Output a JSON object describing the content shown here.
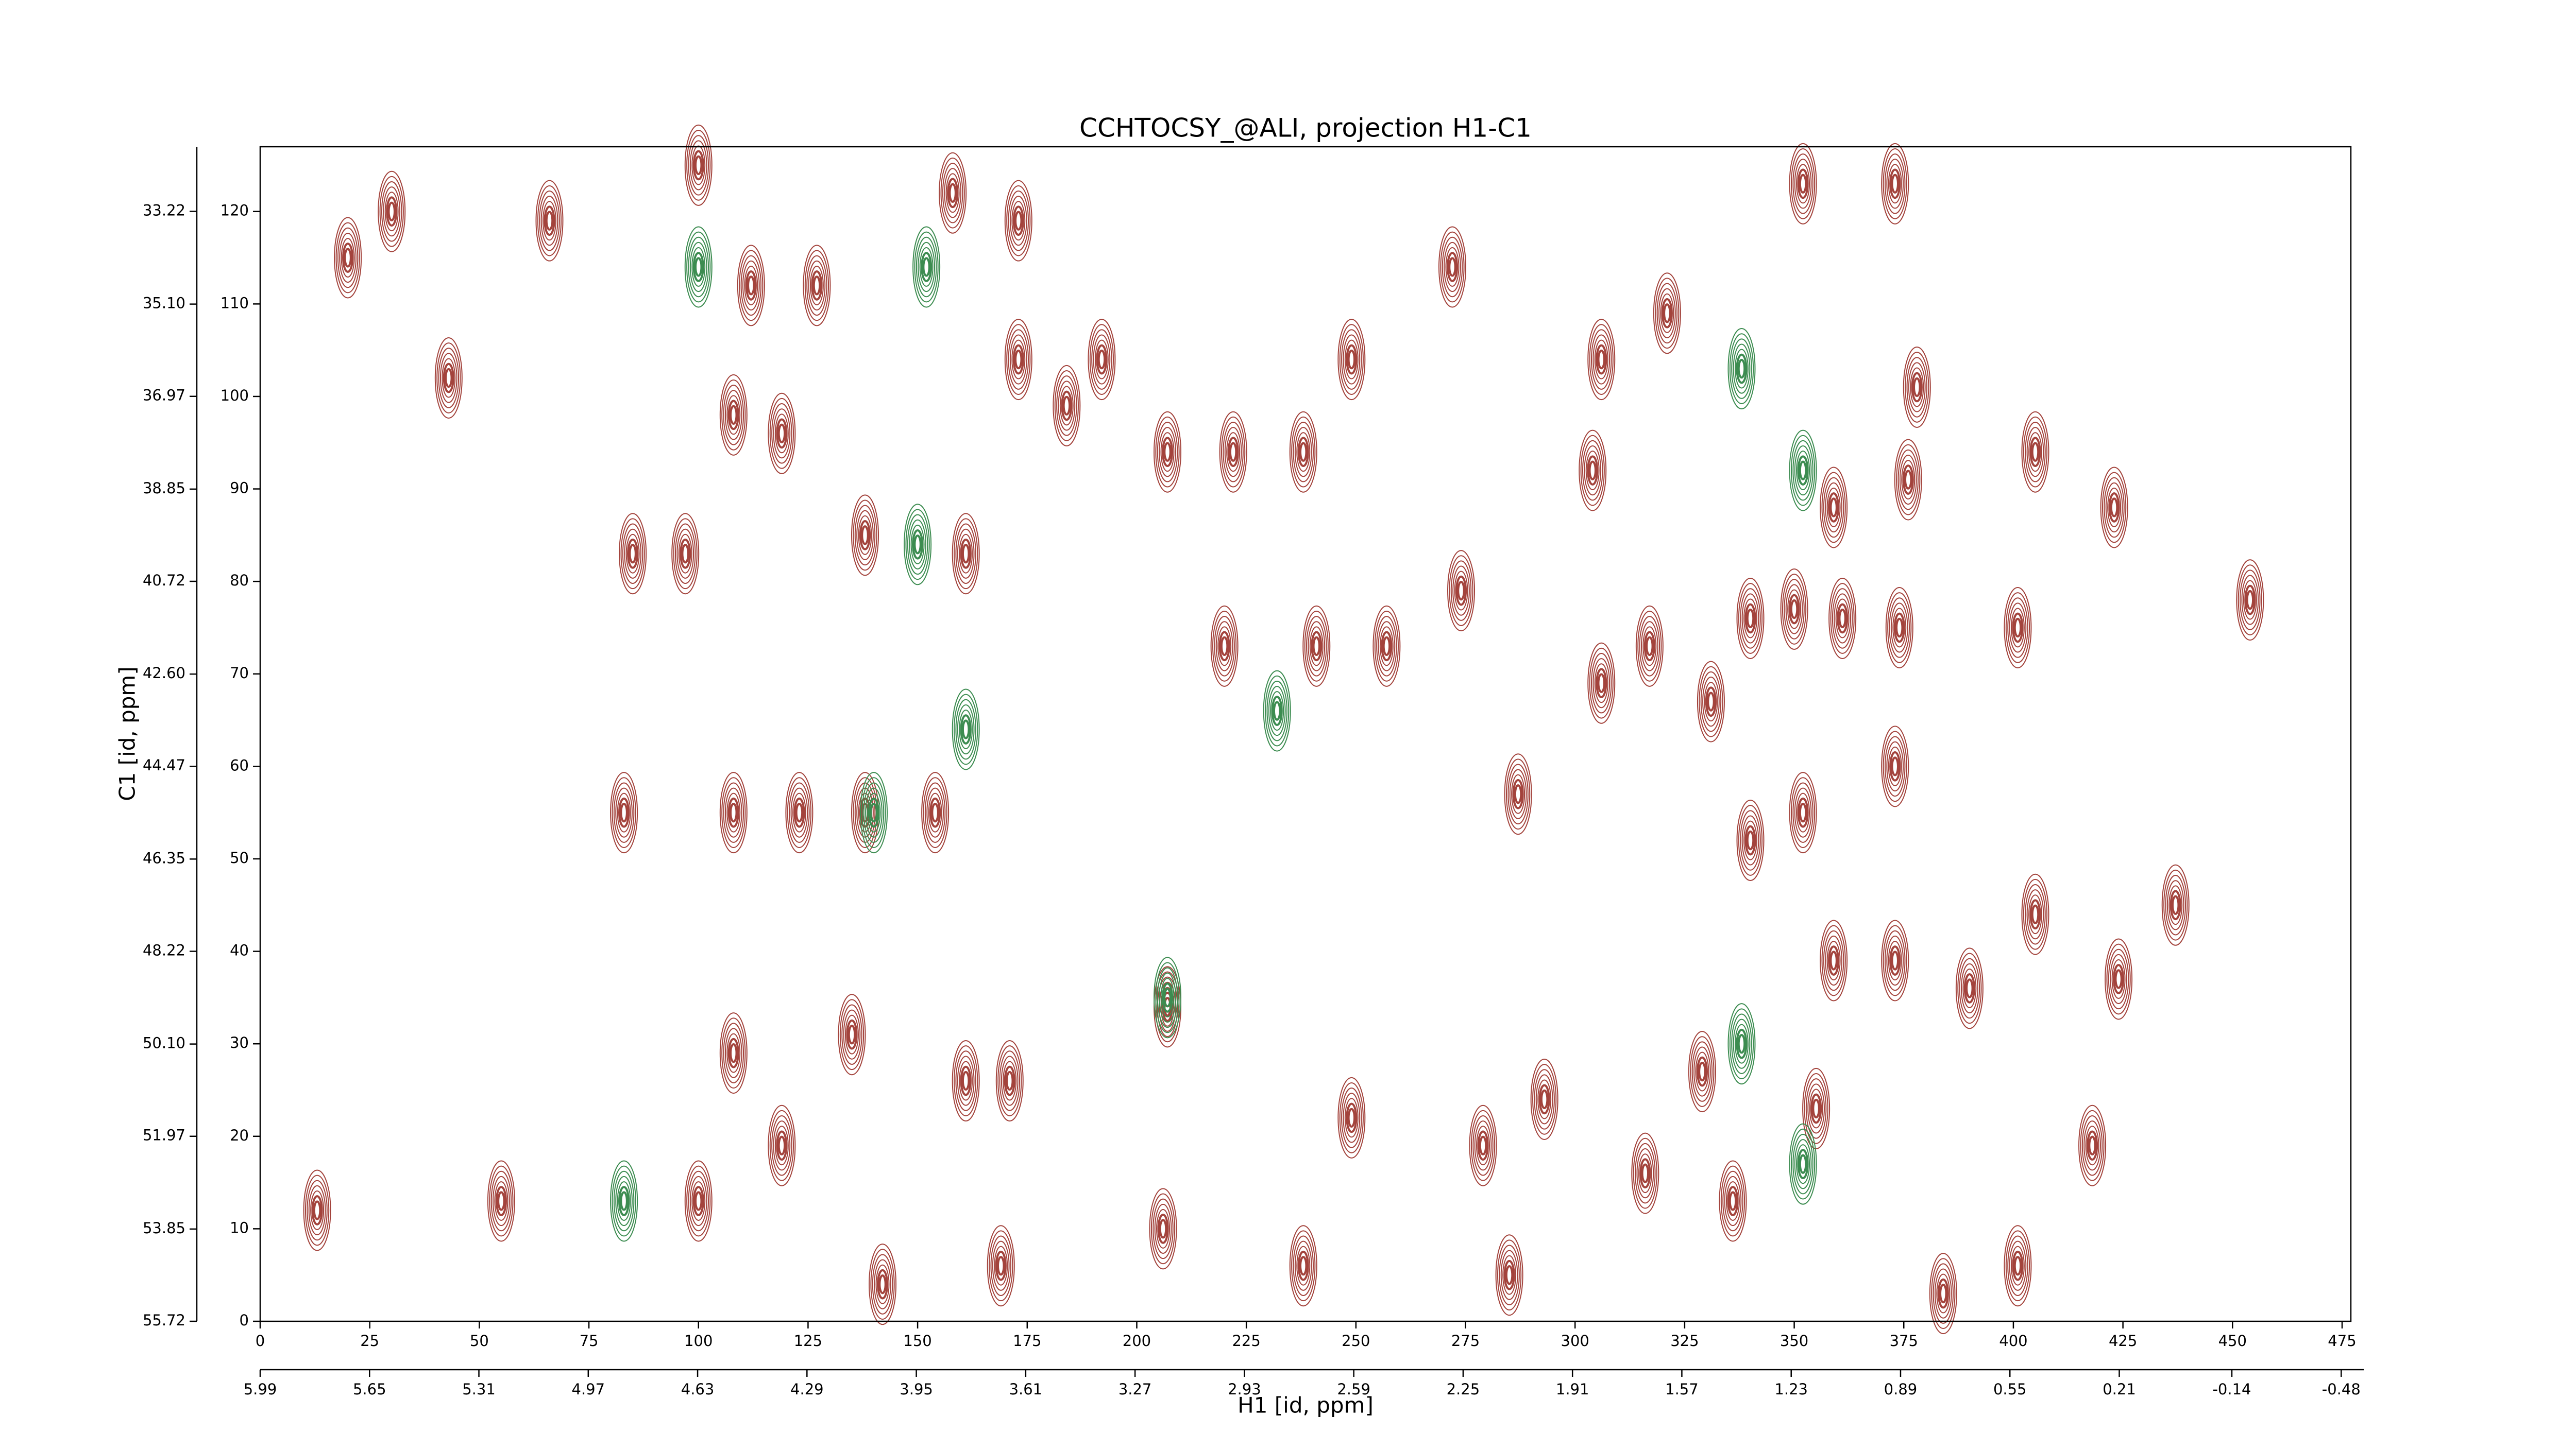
{
  "chart_data": {
    "type": "contour",
    "title": "CCHTOCSY_@ALI, projection H1-C1",
    "xlabel": "H1 [id, ppm]",
    "ylabel": "C1 [id, ppm]",
    "xlim": [
      0,
      477
    ],
    "xticks": [
      0,
      25,
      50,
      75,
      100,
      125,
      150,
      175,
      200,
      225,
      250,
      275,
      300,
      325,
      350,
      375,
      400,
      425,
      450,
      475
    ],
    "ylim": [
      0,
      127
    ],
    "yticks": [
      0,
      10,
      20,
      30,
      40,
      50,
      60,
      70,
      80,
      90,
      100,
      110,
      120
    ],
    "x2lim": [
      5.99,
      -0.51
    ],
    "x2ticks": [
      5.99,
      5.65,
      5.31,
      4.97,
      4.63,
      4.29,
      3.95,
      3.61,
      3.27,
      2.93,
      2.59,
      2.25,
      1.91,
      1.57,
      1.23,
      0.89,
      0.55,
      0.21,
      -0.14,
      -0.48
    ],
    "y2lim": [
      55.72,
      31.91
    ],
    "y2ticks": [
      55.72,
      53.85,
      51.97,
      {
        "value": 50.1,
        "label": "50.10"
      },
      48.22,
      46.35,
      44.47,
      {
        "value": 42.6,
        "label": "42.60"
      },
      40.72,
      38.85,
      36.97,
      {
        "value": 35.1,
        "label": "35.10"
      },
      33.22
    ],
    "series": [
      {
        "color": "#a3433c",
        "x": [
          454,
          423,
          405,
          378,
          418,
          437,
          424,
          405,
          390,
          373,
          359,
          373,
          352,
          340,
          361,
          350,
          340,
          331,
          317,
          306,
          304,
          352,
          373,
          359,
          376,
          374,
          401,
          316,
          293,
          279,
          249,
          207,
          220,
          161,
          171,
          108,
          135,
          123,
          138,
          154,
          287,
          274,
          257,
          241,
          207,
          222,
          238,
          184,
          173,
          192,
          161,
          138,
          119,
          108,
          112,
          127,
          100,
          43,
          30,
          20,
          13,
          55,
          66,
          97,
          85,
          108,
          83,
          329,
          336,
          355,
          384,
          401,
          285,
          238,
          206,
          169,
          142,
          119,
          100,
          249,
          272,
          321,
          306,
          158,
          173
        ],
        "y": [
          78,
          88,
          94,
          101,
          19,
          45,
          37,
          44,
          36,
          39,
          39,
          60,
          55,
          52,
          76,
          77,
          76,
          67,
          73,
          69,
          92,
          123,
          123,
          88,
          91,
          75,
          75,
          16,
          24,
          19,
          22,
          34,
          73,
          26,
          26,
          29,
          31,
          55,
          55,
          55,
          57,
          79,
          73,
          73,
          94,
          94,
          94,
          99,
          104,
          104,
          83,
          85,
          96,
          98,
          112,
          112,
          125,
          102,
          120,
          115,
          12,
          13,
          119,
          83,
          83,
          55,
          55,
          27,
          13,
          23,
          3,
          6,
          5,
          6,
          10,
          6,
          4,
          19,
          13,
          104,
          114,
          109,
          104,
          122,
          119
        ]
      },
      {
        "color": "#3c8c50",
        "x": [
          207,
          150,
          140,
          352,
          338,
          338,
          352,
          100,
          83,
          152,
          232,
          161
        ],
        "y": [
          35,
          84,
          55,
          92,
          103,
          30,
          17,
          114,
          13,
          114,
          66,
          64
        ]
      }
    ]
  }
}
